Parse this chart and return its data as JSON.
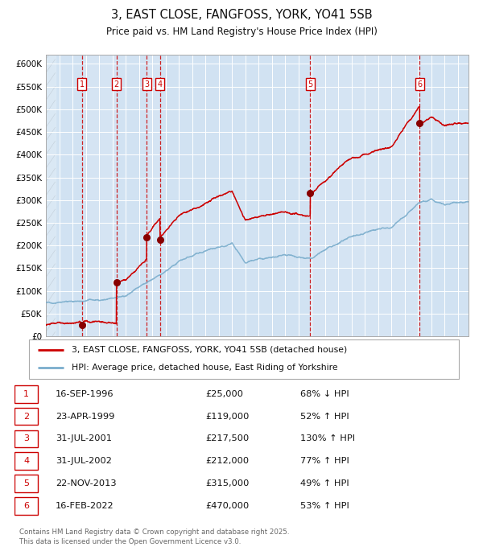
{
  "title": "3, EAST CLOSE, FANGFOSS, YORK, YO41 5SB",
  "subtitle": "Price paid vs. HM Land Registry's House Price Index (HPI)",
  "background_color": "#ffffff",
  "plot_bg_color": "#dce9f5",
  "grid_color": "#ffffff",
  "ylim": [
    0,
    620000
  ],
  "yticks": [
    0,
    50000,
    100000,
    150000,
    200000,
    250000,
    300000,
    350000,
    400000,
    450000,
    500000,
    550000,
    600000
  ],
  "ytick_labels": [
    "£0",
    "£50K",
    "£100K",
    "£150K",
    "£200K",
    "£250K",
    "£300K",
    "£350K",
    "£400K",
    "£450K",
    "£500K",
    "£550K",
    "£600K"
  ],
  "sale_dates_x": [
    1996.71,
    1999.31,
    2001.58,
    2002.58,
    2013.89,
    2022.12
  ],
  "sale_prices_y": [
    25000,
    119000,
    217500,
    212000,
    315000,
    470000
  ],
  "sale_labels": [
    "1",
    "2",
    "3",
    "4",
    "5",
    "6"
  ],
  "red_line_color": "#cc0000",
  "blue_line_color": "#7aadcc",
  "dot_color": "#880000",
  "vline_color": "#cc0000",
  "shade_color": "#c8ddf0",
  "legend_house": "3, EAST CLOSE, FANGFOSS, YORK, YO41 5SB (detached house)",
  "legend_hpi": "HPI: Average price, detached house, East Riding of Yorkshire",
  "table_entries": [
    {
      "num": "1",
      "date": "16-SEP-1996",
      "price": "£25,000",
      "change": "68% ↓ HPI"
    },
    {
      "num": "2",
      "date": "23-APR-1999",
      "price": "£119,000",
      "change": "52% ↑ HPI"
    },
    {
      "num": "3",
      "date": "31-JUL-2001",
      "price": "£217,500",
      "change": "130% ↑ HPI"
    },
    {
      "num": "4",
      "date": "31-JUL-2002",
      "price": "£212,000",
      "change": "77% ↑ HPI"
    },
    {
      "num": "5",
      "date": "22-NOV-2013",
      "price": "£315,000",
      "change": "49% ↑ HPI"
    },
    {
      "num": "6",
      "date": "16-FEB-2022",
      "price": "£470,000",
      "change": "53% ↑ HPI"
    }
  ],
  "footnote": "Contains HM Land Registry data © Crown copyright and database right 2025.\nThis data is licensed under the Open Government Licence v3.0.",
  "xmin": 1994.0,
  "xmax": 2025.8,
  "xticks": [
    1994,
    1995,
    1996,
    1997,
    1998,
    1999,
    2000,
    2001,
    2002,
    2003,
    2004,
    2005,
    2006,
    2007,
    2008,
    2009,
    2010,
    2011,
    2012,
    2013,
    2014,
    2015,
    2016,
    2017,
    2018,
    2019,
    2020,
    2021,
    2022,
    2023,
    2024,
    2025
  ]
}
